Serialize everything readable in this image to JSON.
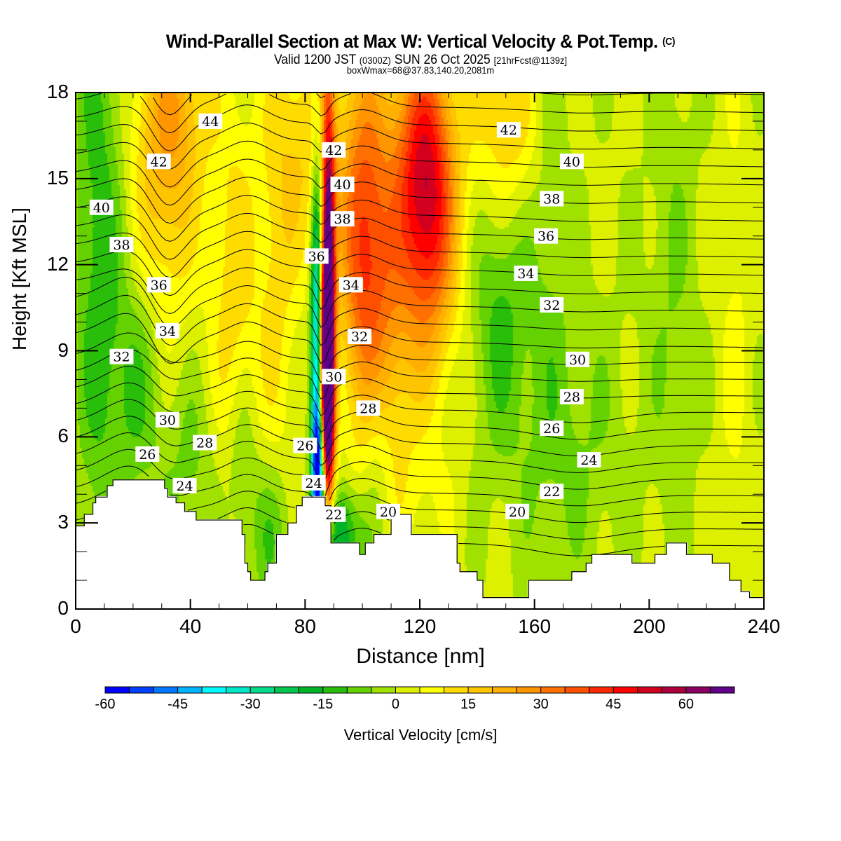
{
  "header": {
    "title": "Wind-Parallel Section at Max W: Vertical Velocity & Pot.Temp.",
    "copyright": "(C)",
    "valid_prefix": "Valid 1200 JST",
    "valid_utc": "(0300Z)",
    "valid_date": "SUN 26 Oct 2025",
    "forecast": "[21hrFcst@1139z]",
    "box_info": "boxWmax=68@37.83,140.20,2081m"
  },
  "chart_data": {
    "type": "heatmap",
    "title": "Wind-Parallel Section at Max W: Vertical Velocity & Pot.Temp.",
    "xlabel": "Distance [nm]",
    "ylabel": "Height [Kft MSL]",
    "xlim": [
      0,
      240
    ],
    "ylim": [
      0,
      18
    ],
    "xticks": [
      "0",
      "40",
      "80",
      "120",
      "160",
      "200",
      "240"
    ],
    "yticks": [
      "0",
      "3",
      "6",
      "9",
      "12",
      "15",
      "18"
    ],
    "x_minor_step": 10,
    "y_minor_step": 1,
    "colorbar": {
      "label": "Vertical Velocity [cm/s]",
      "tick_labels": [
        "-60",
        "-45",
        "-30",
        "-15",
        "0",
        "15",
        "30",
        "45",
        "60"
      ],
      "min": -60,
      "step": 5,
      "colors": [
        "#0000ff",
        "#0040ff",
        "#0078ff",
        "#00b4ff",
        "#00f8ff",
        "#00e8c8",
        "#00dc8c",
        "#00c850",
        "#00b428",
        "#28be0a",
        "#64d200",
        "#a0e100",
        "#dcf000",
        "#ffff00",
        "#ffdc00",
        "#ffc400",
        "#ffb000",
        "#ff9600",
        "#ff7000",
        "#ff5000",
        "#ff2800",
        "#ff0000",
        "#d2001e",
        "#aa003c",
        "#8c0064",
        "#600088"
      ]
    },
    "isentrope_labels": [
      {
        "value": "44",
        "x": 47,
        "z": 17.0
      },
      {
        "value": "42",
        "x": 29,
        "z": 15.6
      },
      {
        "value": "40",
        "x": 9,
        "z": 14.0
      },
      {
        "value": "38",
        "x": 16,
        "z": 12.7
      },
      {
        "value": "36",
        "x": 29,
        "z": 11.3
      },
      {
        "value": "34",
        "x": 32,
        "z": 9.7
      },
      {
        "value": "32",
        "x": 16,
        "z": 8.8
      },
      {
        "value": "30",
        "x": 32,
        "z": 6.6
      },
      {
        "value": "28",
        "x": 45,
        "z": 5.8
      },
      {
        "value": "26",
        "x": 25,
        "z": 5.4
      },
      {
        "value": "24",
        "x": 38,
        "z": 4.3
      },
      {
        "value": "42",
        "x": 90,
        "z": 16.0
      },
      {
        "value": "40",
        "x": 93,
        "z": 14.8
      },
      {
        "value": "38",
        "x": 93,
        "z": 13.6
      },
      {
        "value": "36",
        "x": 84,
        "z": 12.3
      },
      {
        "value": "34",
        "x": 96,
        "z": 11.3
      },
      {
        "value": "32",
        "x": 99,
        "z": 9.5
      },
      {
        "value": "30",
        "x": 90,
        "z": 8.1
      },
      {
        "value": "28",
        "x": 102,
        "z": 7.0
      },
      {
        "value": "26",
        "x": 80,
        "z": 5.7
      },
      {
        "value": "24",
        "x": 83,
        "z": 4.4
      },
      {
        "value": "22",
        "x": 90,
        "z": 3.3
      },
      {
        "value": "20",
        "x": 109,
        "z": 3.4
      },
      {
        "value": "42",
        "x": 151,
        "z": 16.7
      },
      {
        "value": "40",
        "x": 173,
        "z": 15.6
      },
      {
        "value": "38",
        "x": 166,
        "z": 14.3
      },
      {
        "value": "36",
        "x": 164,
        "z": 13.0
      },
      {
        "value": "34",
        "x": 157,
        "z": 11.7
      },
      {
        "value": "32",
        "x": 166,
        "z": 10.6
      },
      {
        "value": "30",
        "x": 175,
        "z": 8.7
      },
      {
        "value": "28",
        "x": 173,
        "z": 7.4
      },
      {
        "value": "26",
        "x": 166,
        "z": 6.3
      },
      {
        "value": "24",
        "x": 179,
        "z": 5.2
      },
      {
        "value": "22",
        "x": 166,
        "z": 4.1
      },
      {
        "value": "20",
        "x": 154,
        "z": 3.4
      }
    ],
    "isentrope_values_K_offset": [
      19,
      20,
      21,
      22,
      23,
      24,
      25,
      26,
      27,
      28,
      29,
      30,
      31,
      32,
      33,
      34,
      35,
      36,
      37,
      38,
      39,
      40,
      41,
      42,
      43,
      44,
      45
    ],
    "terrain_kft": [
      {
        "x": 0,
        "z": 2.9
      },
      {
        "x": 3,
        "z": 3.3
      },
      {
        "x": 6,
        "z": 3.7
      },
      {
        "x": 7,
        "z": 3.9
      },
      {
        "x": 11,
        "z": 4.3
      },
      {
        "x": 13,
        "z": 4.5
      },
      {
        "x": 28,
        "z": 4.5
      },
      {
        "x": 31,
        "z": 4.2
      },
      {
        "x": 32,
        "z": 3.9
      },
      {
        "x": 35,
        "z": 3.7
      },
      {
        "x": 38,
        "z": 3.4
      },
      {
        "x": 42,
        "z": 3.1
      },
      {
        "x": 52,
        "z": 3.1
      },
      {
        "x": 58,
        "z": 2.6
      },
      {
        "x": 59,
        "z": 1.6
      },
      {
        "x": 60,
        "z": 1.3
      },
      {
        "x": 61,
        "z": 1.0
      },
      {
        "x": 65,
        "z": 1.0
      },
      {
        "x": 66,
        "z": 1.3
      },
      {
        "x": 67,
        "z": 1.6
      },
      {
        "x": 70,
        "z": 2.6
      },
      {
        "x": 74,
        "z": 3.0
      },
      {
        "x": 77,
        "z": 3.6
      },
      {
        "x": 79,
        "z": 3.9
      },
      {
        "x": 84,
        "z": 3.9
      },
      {
        "x": 87,
        "z": 3.6
      },
      {
        "x": 89,
        "z": 2.3
      },
      {
        "x": 98,
        "z": 2.3
      },
      {
        "x": 99,
        "z": 1.9
      },
      {
        "x": 100,
        "z": 1.9
      },
      {
        "x": 101,
        "z": 2.3
      },
      {
        "x": 104,
        "z": 2.6
      },
      {
        "x": 110,
        "z": 3.3
      },
      {
        "x": 115,
        "z": 3.3
      },
      {
        "x": 117,
        "z": 2.6
      },
      {
        "x": 127,
        "z": 2.6
      },
      {
        "x": 133,
        "z": 1.6
      },
      {
        "x": 134,
        "z": 1.3
      },
      {
        "x": 140,
        "z": 1.0
      },
      {
        "x": 142,
        "z": 0.4
      },
      {
        "x": 157,
        "z": 0.4
      },
      {
        "x": 158,
        "z": 1.0
      },
      {
        "x": 170,
        "z": 1.0
      },
      {
        "x": 173,
        "z": 1.3
      },
      {
        "x": 178,
        "z": 1.6
      },
      {
        "x": 180,
        "z": 1.9
      },
      {
        "x": 190,
        "z": 1.9
      },
      {
        "x": 194,
        "z": 1.6
      },
      {
        "x": 200,
        "z": 1.6
      },
      {
        "x": 202,
        "z": 1.9
      },
      {
        "x": 206,
        "z": 2.3
      },
      {
        "x": 211,
        "z": 2.3
      },
      {
        "x": 213,
        "z": 1.9
      },
      {
        "x": 220,
        "z": 1.9
      },
      {
        "x": 222,
        "z": 1.6
      },
      {
        "x": 228,
        "z": 1.0
      },
      {
        "x": 232,
        "z": 0.6
      },
      {
        "x": 235,
        "z": 0.4
      },
      {
        "x": 240,
        "z": 0.4
      }
    ]
  }
}
